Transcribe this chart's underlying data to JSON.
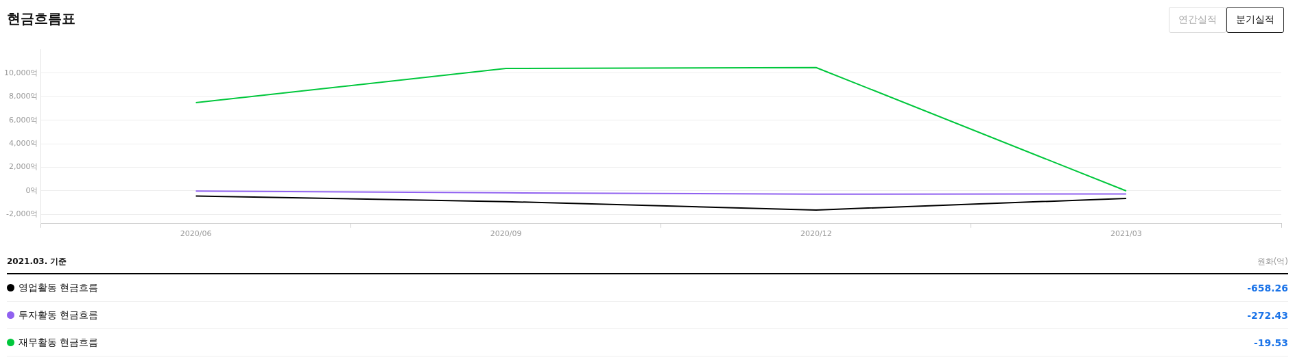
{
  "chart_data": {
    "type": "line",
    "title": "현금흐름표",
    "categories": [
      "2020/06",
      "2020/09",
      "2020/12",
      "2021/03"
    ],
    "series": [
      {
        "name": "영업활동 현금흐름",
        "color": "#000000",
        "values": [
          -460,
          -930,
          -1640,
          -658.26
        ]
      },
      {
        "name": "투자활동 현금흐름",
        "color": "#9061f0",
        "values": [
          -30,
          -180,
          -300,
          -272.43
        ]
      },
      {
        "name": "재무활동 현금흐름",
        "color": "#00c73c",
        "values": [
          7500,
          10400,
          10480,
          -19.53
        ]
      }
    ],
    "ylim": [
      -2800,
      12000
    ],
    "yticks": [
      {
        "value": -2000,
        "label": "-2,000억"
      },
      {
        "value": 0,
        "label": "0억"
      },
      {
        "value": 2000,
        "label": "2,000억"
      },
      {
        "value": 4000,
        "label": "4,000억"
      },
      {
        "value": 6000,
        "label": "6,000억"
      },
      {
        "value": 8000,
        "label": "8,000억"
      },
      {
        "value": 10000,
        "label": "10,000억"
      }
    ],
    "grid": "y",
    "legend": "bottom",
    "marker": "none",
    "line_style": "solid",
    "annotations": [
      "연간실적",
      "분기실적",
      "2021.03. 기준",
      "원화(억)",
      "-658.26",
      "-272.43",
      "-19.53"
    ]
  }
}
